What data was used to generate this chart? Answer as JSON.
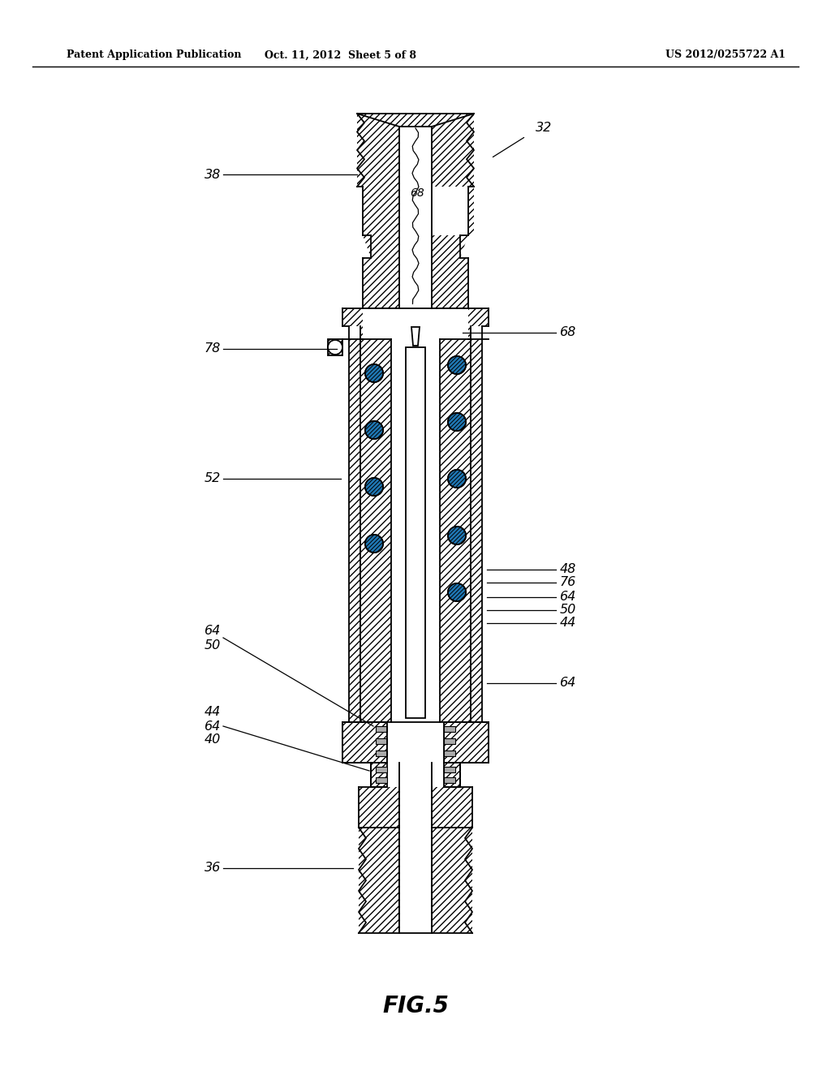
{
  "title_left": "Patent Application Publication",
  "title_center": "Oct. 11, 2012  Sheet 5 of 8",
  "title_right": "US 2012/0255722 A1",
  "fig_label": "FIG.5",
  "ref_32": "32",
  "ref_36": "36",
  "ref_38": "38",
  "ref_40": "40",
  "ref_44": "44",
  "ref_48": "48",
  "ref_50": "50",
  "ref_52": "52",
  "ref_64": "64",
  "ref_68": "68",
  "ref_76": "76",
  "ref_78": "78",
  "background": "#ffffff",
  "line_color": "#000000",
  "hatch_density": "////"
}
